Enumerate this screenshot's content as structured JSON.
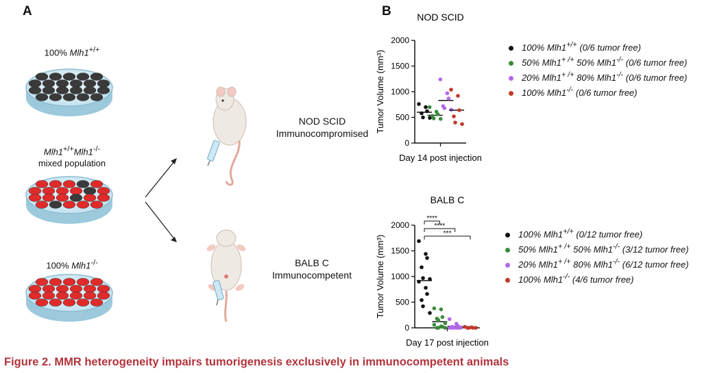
{
  "panel_a": {
    "letter": "A",
    "dish_labels": [
      {
        "html": "100% <i>Mlh1</i><sup>+/+</sup>"
      },
      {
        "html": "<i>Mlh1</i><sup>+/+</sup><i>Mlh1</i><sup>-/-</sup><br>mixed population"
      },
      {
        "html": "100% <i>Mlh1</i><sup>-/-</sup>"
      }
    ],
    "mouse_labels": [
      {
        "line1": "NOD SCID",
        "line2": "Immunocompromised"
      },
      {
        "line1": "BALB C",
        "line2": "Immunocompetent"
      }
    ]
  },
  "panel_b": {
    "letter": "B"
  },
  "colors": {
    "wt": "#111111",
    "mix50": "#3b8a3b",
    "mix20": "#b168e8",
    "ko": "#c0392b",
    "caption": "#b3333c"
  },
  "chart_data": [
    {
      "type": "scatter",
      "title": "NOD SCID",
      "xlabel": "Day 14 post injection",
      "ylabel": "Tumor Volume (mm³)",
      "ylim": [
        0,
        2000
      ],
      "yticks": [
        0,
        500,
        1000,
        1500,
        2000
      ],
      "series": [
        {
          "name": "100% Mlh1+/+ (0/6 tumor free)",
          "color": "#111111",
          "mean": 600,
          "values": [
            760,
            700,
            620,
            580,
            500,
            490
          ]
        },
        {
          "name": "50% Mlh1+/+ 50% Mlh1-/- (0/6 tumor free)",
          "color": "#3b8a3b",
          "mean": 540,
          "values": [
            700,
            610,
            560,
            530,
            480,
            470
          ]
        },
        {
          "name": "20% Mlh1+/+ 80% Mlh1-/- (0/6 tumor free)",
          "color": "#b168e8",
          "mean": 830,
          "values": [
            1240,
            970,
            870,
            720,
            680,
            650
          ]
        },
        {
          "name": "100% Mlh1-/- (0/6 tumor free)",
          "color": "#c0392b",
          "mean": 640,
          "values": [
            1040,
            920,
            640,
            520,
            400,
            370
          ]
        }
      ],
      "legend": [
        {
          "html": "100% <i>Mlh1</i><sup>+/+</sup> (0/6 tumor free)",
          "color": "#111111"
        },
        {
          "html": "50% <i>Mlh1</i><sup>+ /+</sup> 50% <i>Mlh1</i><sup>-/-</sup> (0/6 tumor free)",
          "color": "#3b8a3b"
        },
        {
          "html": "20% <i>Mlh1</i><sup>+ /+</sup> 80% <i>Mlh1</i><sup>-/-</sup> (0/6 tumor free)",
          "color": "#b168e8"
        },
        {
          "html": "100% <i>Mlh1</i><sup>-/-</sup> (0/6 tumor free)",
          "color": "#c0392b"
        }
      ]
    },
    {
      "type": "scatter",
      "title": "BALB C",
      "xlabel": "Day 17 post injection",
      "ylabel": "Tumor Volume (mm³)",
      "ylim": [
        0,
        2000
      ],
      "yticks": [
        0,
        500,
        1000,
        1500,
        2000
      ],
      "series": [
        {
          "name": "100% Mlh1+/+ (0/12 tumor free)",
          "color": "#111111",
          "mean": 920,
          "values": [
            1690,
            1440,
            1360,
            1180,
            970,
            950,
            900,
            780,
            660,
            540,
            420,
            290
          ]
        },
        {
          "name": "50% Mlh1+/+ 50% Mlh1-/- (3/12 tumor free)",
          "color": "#3b8a3b",
          "mean": 120,
          "values": [
            380,
            360,
            210,
            180,
            150,
            90,
            60,
            30,
            20,
            0,
            0,
            0
          ]
        },
        {
          "name": "20% Mlh1+/+ 80% Mlh1-/- (6/12 tumor free)",
          "color": "#b168e8",
          "mean": 30,
          "values": [
            170,
            80,
            40,
            20,
            10,
            10,
            0,
            0,
            0,
            0,
            0,
            0
          ]
        },
        {
          "name": "100% Mlh1-/- (4/6 tumor free)",
          "color": "#c0392b",
          "mean": 10,
          "values": [
            20,
            10,
            0,
            0,
            0,
            0
          ]
        }
      ],
      "significance": [
        {
          "from": 0,
          "to": 1,
          "label": "****"
        },
        {
          "from": 0,
          "to": 2,
          "label": "****"
        },
        {
          "from": 0,
          "to": 3,
          "label": "***"
        }
      ],
      "legend": [
        {
          "html": "100% <i>Mlh1</i><sup>+/+</sup> (0/12 tumor free)",
          "color": "#111111"
        },
        {
          "html": "50% <i>Mlh1</i><sup>+ /+</sup> 50% <i>Mlh1</i><sup>-/-</sup> (3/12 tumor free)",
          "color": "#3b8a3b"
        },
        {
          "html": "20% <i>Mlh1</i><sup>+ /+</sup> 80% <i>Mlh1</i><sup>-/-</sup> (6/12 tumor free)",
          "color": "#b168e8"
        },
        {
          "html": "100% <i>Mlh1</i><sup>-/-</sup> (4/6 tumor free)",
          "color": "#c0392b"
        }
      ]
    }
  ],
  "caption": "Figure 2.  MMR heterogeneity impairs tumorigenesis exclusively in immunocompetent animals"
}
